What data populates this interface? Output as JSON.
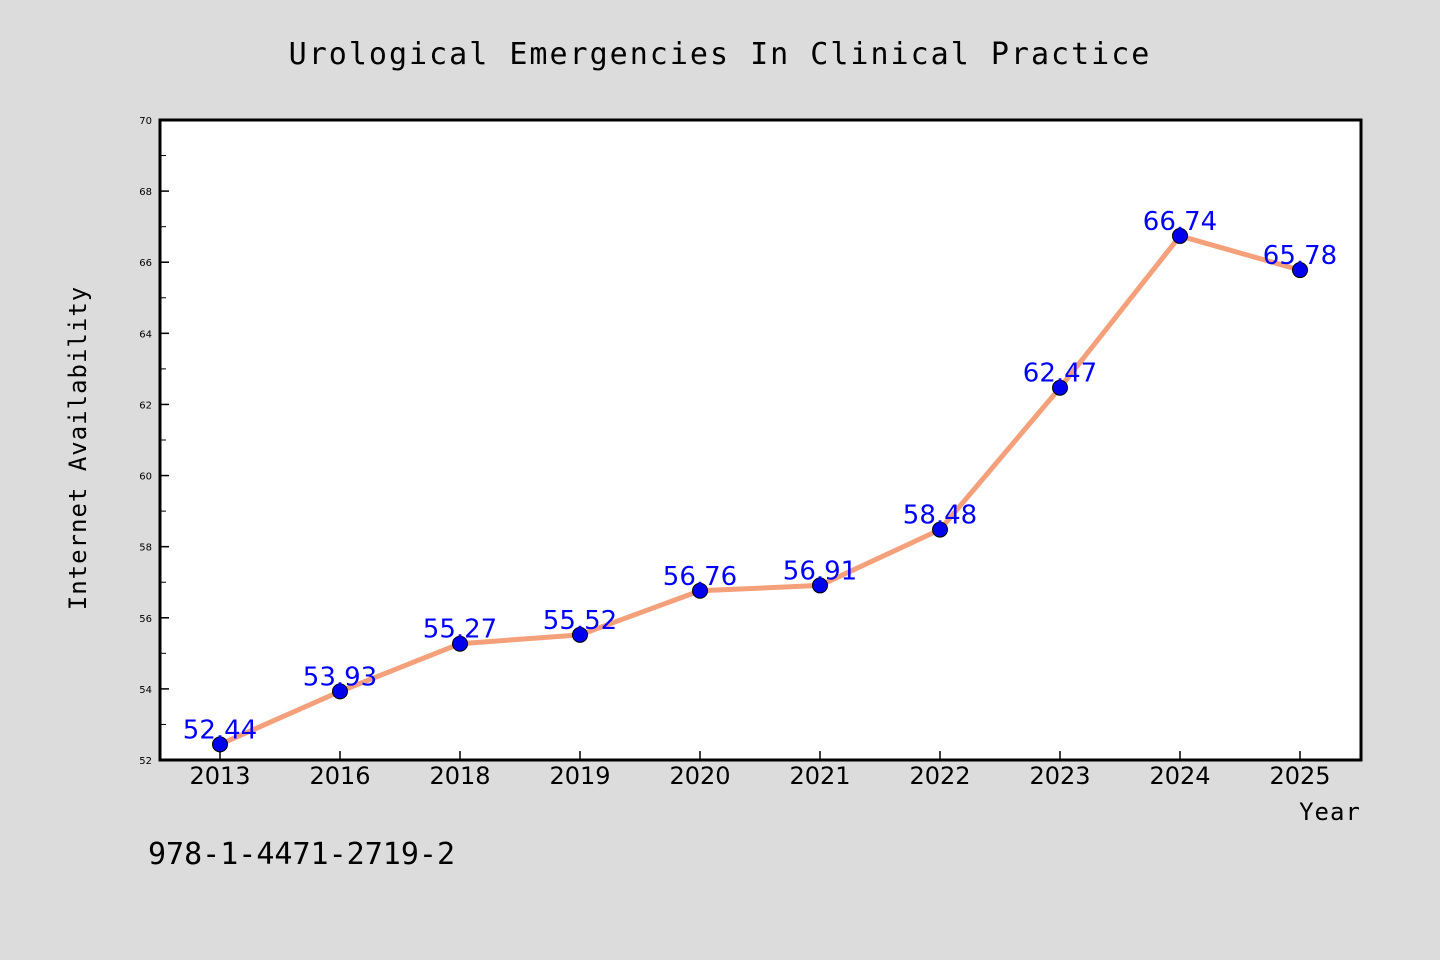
{
  "chart_data": {
    "type": "line",
    "title": "Urological Emergencies In Clinical Practice",
    "xlabel": "Year",
    "ylabel": "Internet Availability",
    "categories": [
      "2013",
      "2016",
      "2018",
      "2019",
      "2020",
      "2021",
      "2022",
      "2023",
      "2024",
      "2025"
    ],
    "values": [
      52.44,
      53.93,
      55.27,
      55.52,
      56.76,
      56.91,
      58.48,
      62.47,
      66.74,
      65.78
    ],
    "data_labels": [
      "52.44",
      "53.93",
      "55.27",
      "55.52",
      "56.76",
      "56.91",
      "58.48",
      "62.47",
      "66.74",
      "65.78"
    ],
    "ylim": [
      52,
      70
    ],
    "yticks": [
      "52",
      "54",
      "56",
      "58",
      "60",
      "62",
      "64",
      "66",
      "68",
      "70"
    ],
    "grid": false,
    "legend": "none",
    "colors": {
      "line": "#f4a07a",
      "marker": "#0000ee",
      "data_label": "#0000ff",
      "background": "#dcdcdc",
      "plot_background": "#ffffff"
    }
  },
  "footer": {
    "identifier": "978-1-4471-2719-2"
  }
}
